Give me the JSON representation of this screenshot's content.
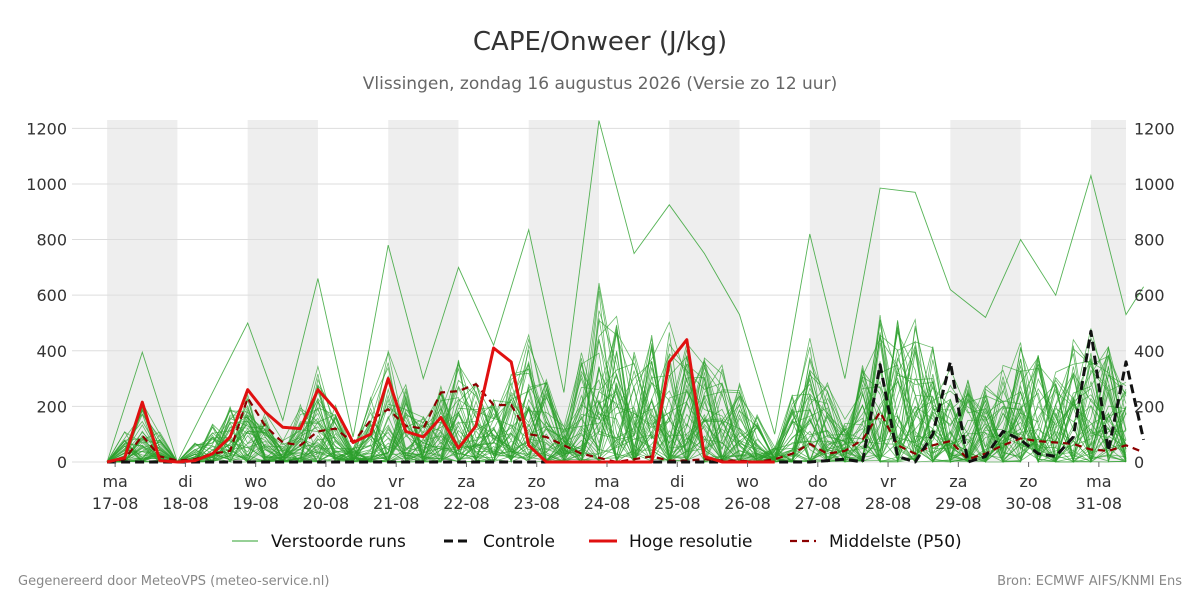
{
  "chart_data": {
    "type": "line",
    "title": "CAPE/Onweer (J/kg)",
    "subtitle": "Vlissingen, zondag 16 augustus 2026 (Versie zo 12 uur)",
    "ylim": [
      0,
      1230
    ],
    "yticks": [
      0,
      200,
      400,
      600,
      800,
      1000,
      1200
    ],
    "grid": true,
    "legend_position": "bottom",
    "x_start": "2026-08-16T12:00",
    "x_end": "2026-08-31T12:00",
    "day_ticks": [
      {
        "date": "2026-08-17",
        "day": "ma",
        "label": "17-08"
      },
      {
        "date": "2026-08-18",
        "day": "di",
        "label": "18-08"
      },
      {
        "date": "2026-08-19",
        "day": "wo",
        "label": "19-08"
      },
      {
        "date": "2026-08-20",
        "day": "do",
        "label": "20-08"
      },
      {
        "date": "2026-08-21",
        "day": "vr",
        "label": "21-08"
      },
      {
        "date": "2026-08-22",
        "day": "za",
        "label": "22-08"
      },
      {
        "date": "2026-08-23",
        "day": "zo",
        "label": "23-08"
      },
      {
        "date": "2026-08-24",
        "day": "ma",
        "label": "24-08"
      },
      {
        "date": "2026-08-25",
        "day": "di",
        "label": "25-08"
      },
      {
        "date": "2026-08-26",
        "day": "wo",
        "label": "26-08"
      },
      {
        "date": "2026-08-27",
        "day": "do",
        "label": "27-08"
      },
      {
        "date": "2026-08-28",
        "day": "vr",
        "label": "28-08"
      },
      {
        "date": "2026-08-29",
        "day": "za",
        "label": "29-08"
      },
      {
        "date": "2026-08-30",
        "day": "zo",
        "label": "30-08"
      },
      {
        "date": "2026-08-31",
        "day": "ma",
        "label": "31-08"
      }
    ],
    "shaded_days": [
      "2026-08-17",
      "2026-08-19",
      "2026-08-21",
      "2026-08-23",
      "2026-08-25",
      "2026-08-27",
      "2026-08-29",
      "2026-08-31"
    ],
    "colors": {
      "ensemble": "#2ca02c",
      "control": "#111111",
      "hires": "#e01010",
      "median": "#8b0000",
      "shade": "#eeeeee",
      "grid": "#dddddd"
    },
    "legend": [
      {
        "label": "Verstoorde runs",
        "style": "ensemble"
      },
      {
        "label": "Controle",
        "style": "control"
      },
      {
        "label": "Hoge resolutie",
        "style": "hires"
      },
      {
        "label": "Middelste (P50)",
        "style": "median"
      }
    ],
    "series": [
      {
        "name": "Hoge resolutie",
        "style": "hires",
        "points": [
          [
            "2026-08-17T00:00",
            0
          ],
          [
            "2026-08-17T06:00",
            15
          ],
          [
            "2026-08-17T12:00",
            215
          ],
          [
            "2026-08-17T18:00",
            5
          ],
          [
            "2026-08-18T00:00",
            0
          ],
          [
            "2026-08-18T06:00",
            5
          ],
          [
            "2026-08-18T12:00",
            30
          ],
          [
            "2026-08-18T18:00",
            90
          ],
          [
            "2026-08-19T00:00",
            260
          ],
          [
            "2026-08-19T06:00",
            180
          ],
          [
            "2026-08-19T12:00",
            125
          ],
          [
            "2026-08-19T18:00",
            120
          ],
          [
            "2026-08-20T00:00",
            260
          ],
          [
            "2026-08-20T06:00",
            190
          ],
          [
            "2026-08-20T12:00",
            70
          ],
          [
            "2026-08-20T18:00",
            100
          ],
          [
            "2026-08-21T00:00",
            300
          ],
          [
            "2026-08-21T06:00",
            110
          ],
          [
            "2026-08-21T12:00",
            90
          ],
          [
            "2026-08-21T18:00",
            160
          ],
          [
            "2026-08-22T00:00",
            50
          ],
          [
            "2026-08-22T06:00",
            130
          ],
          [
            "2026-08-22T12:00",
            410
          ],
          [
            "2026-08-22T18:00",
            360
          ],
          [
            "2026-08-23T00:00",
            60
          ],
          [
            "2026-08-23T06:00",
            0
          ],
          [
            "2026-08-23T12:00",
            0
          ],
          [
            "2026-08-23T18:00",
            0
          ],
          [
            "2026-08-24T00:00",
            0
          ],
          [
            "2026-08-24T06:00",
            0
          ],
          [
            "2026-08-24T12:00",
            0
          ],
          [
            "2026-08-24T18:00",
            0
          ],
          [
            "2026-08-25T00:00",
            360
          ],
          [
            "2026-08-25T06:00",
            440
          ],
          [
            "2026-08-25T12:00",
            20
          ],
          [
            "2026-08-25T18:00",
            0
          ],
          [
            "2026-08-26T00:00",
            0
          ],
          [
            "2026-08-26T06:00",
            0
          ],
          [
            "2026-08-26T12:00",
            0
          ]
        ]
      },
      {
        "name": "Controle",
        "style": "control",
        "points": [
          [
            "2026-08-17T00:00",
            0
          ],
          [
            "2026-08-17T12:00",
            0
          ],
          [
            "2026-08-18T00:00",
            0
          ],
          [
            "2026-08-19T00:00",
            0
          ],
          [
            "2026-08-20T00:00",
            0
          ],
          [
            "2026-08-21T00:00",
            0
          ],
          [
            "2026-08-22T00:00",
            0
          ],
          [
            "2026-08-23T00:00",
            0
          ],
          [
            "2026-08-24T00:00",
            0
          ],
          [
            "2026-08-25T00:00",
            0
          ],
          [
            "2026-08-26T00:00",
            0
          ],
          [
            "2026-08-27T00:00",
            0
          ],
          [
            "2026-08-27T12:00",
            10
          ],
          [
            "2026-08-27T18:00",
            0
          ],
          [
            "2026-08-28T00:00",
            350
          ],
          [
            "2026-08-28T06:00",
            20
          ],
          [
            "2026-08-28T12:00",
            0
          ],
          [
            "2026-08-28T18:00",
            100
          ],
          [
            "2026-08-29T00:00",
            360
          ],
          [
            "2026-08-29T06:00",
            0
          ],
          [
            "2026-08-29T12:00",
            20
          ],
          [
            "2026-08-29T18:00",
            110
          ],
          [
            "2026-08-30T00:00",
            80
          ],
          [
            "2026-08-30T06:00",
            30
          ],
          [
            "2026-08-30T12:00",
            20
          ],
          [
            "2026-08-30T18:00",
            90
          ],
          [
            "2026-08-31T00:00",
            470
          ],
          [
            "2026-08-31T06:00",
            40
          ],
          [
            "2026-08-31T12:00",
            360
          ],
          [
            "2026-08-31T18:00",
            80
          ]
        ]
      },
      {
        "name": "Middelste (P50)",
        "style": "median",
        "points": [
          [
            "2026-08-17T00:00",
            0
          ],
          [
            "2026-08-17T06:00",
            10
          ],
          [
            "2026-08-17T12:00",
            95
          ],
          [
            "2026-08-17T18:00",
            20
          ],
          [
            "2026-08-18T00:00",
            5
          ],
          [
            "2026-08-18T06:00",
            10
          ],
          [
            "2026-08-18T12:00",
            30
          ],
          [
            "2026-08-18T18:00",
            40
          ],
          [
            "2026-08-19T00:00",
            230
          ],
          [
            "2026-08-19T06:00",
            130
          ],
          [
            "2026-08-19T12:00",
            70
          ],
          [
            "2026-08-19T18:00",
            60
          ],
          [
            "2026-08-20T00:00",
            110
          ],
          [
            "2026-08-20T06:00",
            120
          ],
          [
            "2026-08-20T12:00",
            70
          ],
          [
            "2026-08-20T18:00",
            150
          ],
          [
            "2026-08-21T00:00",
            190
          ],
          [
            "2026-08-21T06:00",
            130
          ],
          [
            "2026-08-21T12:00",
            120
          ],
          [
            "2026-08-21T18:00",
            250
          ],
          [
            "2026-08-22T00:00",
            255
          ],
          [
            "2026-08-22T06:00",
            280
          ],
          [
            "2026-08-22T12:00",
            205
          ],
          [
            "2026-08-22T18:00",
            205
          ],
          [
            "2026-08-23T00:00",
            100
          ],
          [
            "2026-08-23T06:00",
            90
          ],
          [
            "2026-08-23T12:00",
            60
          ],
          [
            "2026-08-23T18:00",
            30
          ],
          [
            "2026-08-24T00:00",
            15
          ],
          [
            "2026-08-24T06:00",
            0
          ],
          [
            "2026-08-24T12:00",
            10
          ],
          [
            "2026-08-24T18:00",
            20
          ],
          [
            "2026-08-25T00:00",
            5
          ],
          [
            "2026-08-25T06:00",
            5
          ],
          [
            "2026-08-25T12:00",
            10
          ],
          [
            "2026-08-25T18:00",
            5
          ],
          [
            "2026-08-26T00:00",
            5
          ],
          [
            "2026-08-26T06:00",
            0
          ],
          [
            "2026-08-26T12:00",
            10
          ],
          [
            "2026-08-26T18:00",
            30
          ],
          [
            "2026-08-27T00:00",
            65
          ],
          [
            "2026-08-27T06:00",
            30
          ],
          [
            "2026-08-27T12:00",
            40
          ],
          [
            "2026-08-27T18:00",
            80
          ],
          [
            "2026-08-28T00:00",
            180
          ],
          [
            "2026-08-28T06:00",
            60
          ],
          [
            "2026-08-28T12:00",
            30
          ],
          [
            "2026-08-28T18:00",
            60
          ],
          [
            "2026-08-29T00:00",
            75
          ],
          [
            "2026-08-29T06:00",
            10
          ],
          [
            "2026-08-29T12:00",
            30
          ],
          [
            "2026-08-29T18:00",
            60
          ],
          [
            "2026-08-30T00:00",
            85
          ],
          [
            "2026-08-30T06:00",
            75
          ],
          [
            "2026-08-30T12:00",
            70
          ],
          [
            "2026-08-30T18:00",
            65
          ],
          [
            "2026-08-31T00:00",
            45
          ],
          [
            "2026-08-31T06:00",
            40
          ],
          [
            "2026-08-31T12:00",
            60
          ],
          [
            "2026-08-31T18:00",
            35
          ]
        ]
      },
      {
        "name": "Verstoorde runs",
        "style": "ensemble",
        "points": [
          [
            "2026-08-17T00:00",
            0
          ],
          [
            "2026-08-17T12:00",
            395
          ],
          [
            "2026-08-18T00:00",
            0
          ],
          [
            "2026-08-19T00:00",
            500
          ],
          [
            "2026-08-19T12:00",
            150
          ],
          [
            "2026-08-20T00:00",
            660
          ],
          [
            "2026-08-20T12:00",
            90
          ],
          [
            "2026-08-21T00:00",
            780
          ],
          [
            "2026-08-21T12:00",
            300
          ],
          [
            "2026-08-22T00:00",
            700
          ],
          [
            "2026-08-22T12:00",
            420
          ],
          [
            "2026-08-23T00:00",
            835
          ],
          [
            "2026-08-23T12:00",
            250
          ],
          [
            "2026-08-24T00:00",
            1228
          ],
          [
            "2026-08-24T12:00",
            750
          ],
          [
            "2026-08-25T00:00",
            925
          ],
          [
            "2026-08-25T12:00",
            750
          ],
          [
            "2026-08-26T00:00",
            530
          ],
          [
            "2026-08-26T12:00",
            100
          ],
          [
            "2026-08-27T00:00",
            820
          ],
          [
            "2026-08-27T12:00",
            300
          ],
          [
            "2026-08-28T00:00",
            985
          ],
          [
            "2026-08-28T12:00",
            970
          ],
          [
            "2026-08-29T00:00",
            620
          ],
          [
            "2026-08-29T12:00",
            520
          ],
          [
            "2026-08-30T00:00",
            800
          ],
          [
            "2026-08-30T12:00",
            600
          ],
          [
            "2026-08-31T00:00",
            1030
          ],
          [
            "2026-08-31T12:00",
            530
          ],
          [
            "2026-08-31T18:00",
            630
          ]
        ]
      }
    ]
  },
  "footer": {
    "left": "Gegenereerd door MeteoVPS (meteo-service.nl)",
    "right": "Bron: ECMWF AIFS/KNMI Ens"
  }
}
